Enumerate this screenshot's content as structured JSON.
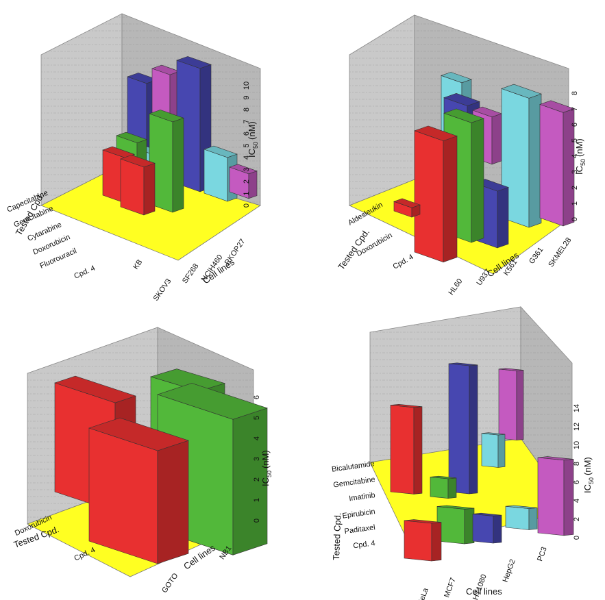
{
  "chart_data": [
    {
      "type": "bar3d",
      "x_label": "Cell lines",
      "y_label": "Tested Cpd.",
      "z_label": "IC50 (nM)",
      "z_ticks": [
        "0",
        "1",
        "2",
        "3",
        "4",
        "5",
        "6",
        "7",
        "8",
        "9",
        "10"
      ],
      "zlim": [
        0,
        10
      ],
      "categories": [
        "KB",
        "SKOV3",
        "SF268",
        "NCIH460",
        "RKOP27"
      ],
      "series": [
        {
          "name": "Cpd. 4",
          "color": "#e83030",
          "values": [
            3.5,
            null,
            null,
            null,
            null
          ]
        },
        {
          "name": "Fluorouracil",
          "color": "#e83030",
          "values": [
            3.3,
            null,
            null,
            null,
            null
          ]
        },
        {
          "name": "Doxorubicin",
          "color": "#52b83a",
          "values": [
            3.2,
            6.0,
            null,
            null,
            null
          ]
        },
        {
          "name": "Cytarabine",
          "color": "#7ad7e0",
          "values": [
            null,
            null,
            3.0,
            3.2,
            null
          ]
        },
        {
          "name": "Gemcitabine",
          "color": "#4747b0",
          "values": [
            5.8,
            8.0,
            null,
            null,
            null
          ]
        },
        {
          "name": "Capecitabine",
          "color": "#c45ac0",
          "values": [
            6.0,
            null,
            null,
            null,
            2.7
          ]
        }
      ]
    },
    {
      "type": "bar3d",
      "x_label": "Cell lines",
      "y_label": "Tested Cpd.",
      "z_label": "IC50 (nM)",
      "z_ticks": [
        "0",
        "1",
        "2",
        "3",
        "4",
        "5",
        "6",
        "7",
        "8"
      ],
      "zlim": [
        0,
        8
      ],
      "categories": [
        "HL60",
        "U937",
        "K561",
        "G361",
        "SKMEL28"
      ],
      "series": [
        {
          "name": "Cpd. 4",
          "color": "#e83030",
          "values": [
            6.7,
            null,
            null,
            null,
            null
          ]
        },
        {
          "name": "Doxorubicin",
          "color": "#52b83a",
          "values": [
            null,
            6.8,
            null,
            null,
            null
          ]
        },
        {
          "name": "Aldesleukin",
          "color": "#e83030",
          "values": [
            0.4,
            null,
            null,
            null,
            null
          ]
        },
        {
          "name": "Doxorubicin",
          "color": "#4747b0",
          "values": [
            null,
            2.7,
            null,
            null,
            null
          ]
        },
        {
          "name": "Aldesleukin",
          "color": "#7ad7e0",
          "values": [
            null,
            null,
            7.3,
            null,
            null
          ]
        },
        {
          "name": "Aldesleukin",
          "color": "#c45ac0",
          "values": [
            null,
            null,
            null,
            6.3,
            null
          ]
        }
      ]
    },
    {
      "type": "bar3d",
      "x_label": "Cell lines",
      "y_label": "Tested Cpd.",
      "z_label": "IC50 (nM)",
      "z_ticks": [
        "0",
        "1",
        "2",
        "3",
        "4",
        "5",
        "6"
      ],
      "zlim": [
        0,
        6
      ],
      "categories": [
        "GOTO",
        "NB1"
      ],
      "series": [
        {
          "name": "Cpd. 4",
          "values": [
            5.3,
            5.7
          ]
        },
        {
          "name": "Doxorubicin",
          "values": [
            5.1,
            5.8
          ]
        }
      ]
    },
    {
      "type": "bar3d",
      "x_label": "Cell lines",
      "y_label": "Tested Cpd.",
      "z_label": "IC50 (nM)",
      "z_ticks": [
        "0",
        "2",
        "4",
        "6",
        "8",
        "10",
        "12",
        "14"
      ],
      "zlim": [
        0,
        14
      ],
      "categories": [
        "HeLa",
        "MCF7",
        "HT1080",
        "HepG2",
        "PC3"
      ],
      "series": [
        {
          "name": "Cpd. 4",
          "values": [
            12.0,
            null,
            null,
            null,
            null
          ]
        },
        {
          "name": "Paditaxel",
          "values": [
            4.0,
            4.0,
            null,
            null,
            null
          ]
        },
        {
          "name": "Epirubicin",
          "values": [
            null,
            null,
            2.0,
            null,
            null
          ]
        },
        {
          "name": "Imatinib",
          "values": [
            null,
            null,
            null,
            2.2,
            null
          ]
        },
        {
          "name": "Gemcitabine",
          "values": [
            null,
            null,
            12.0,
            null,
            null
          ]
        },
        {
          "name": "Bicalutamide",
          "values": [
            null,
            null,
            null,
            5.0,
            10.0
          ]
        }
      ]
    }
  ],
  "panels": [
    {
      "z_label_text": "IC",
      "z_label_sub": "50",
      "z_label_unit": "(nM)",
      "y_label": "Tested Cpd.",
      "x_label": "Cell lines",
      "y_ticks": [
        "Capecitabine",
        "Gemcitabine",
        "Cytarabine",
        "Doxorubicin",
        "Fluorouracil",
        "Cpd. 4"
      ],
      "x_ticks": [
        "KB",
        "SKOV3",
        "SF268",
        "NCIH460",
        "RKOP27"
      ],
      "z_ticks": [
        "0",
        "1",
        "2",
        "3",
        "4",
        "5",
        "6",
        "7",
        "8",
        "9",
        "10"
      ]
    },
    {
      "z_label_text": "IC",
      "z_label_sub": "50",
      "z_label_unit": "(nM)",
      "y_label": "Tested Cpd.",
      "x_label": "Cell lines",
      "y_ticks": [
        "Aldesleukin",
        "Doxorubicin",
        "Cpd. 4"
      ],
      "x_ticks": [
        "HL60",
        "U937",
        "K561",
        "G361",
        "SKMEL28"
      ],
      "z_ticks": [
        "0",
        "1",
        "2",
        "3",
        "4",
        "5",
        "6",
        "7",
        "8"
      ]
    },
    {
      "z_label_text": "IC",
      "z_label_sub": "50",
      "z_label_unit": "(nM)",
      "y_label": "Tested Cpd.",
      "x_label": "Cell lines",
      "y_ticks": [
        "Doxorubicin",
        "Cpd. 4"
      ],
      "x_ticks": [
        "GOTO",
        "NB1"
      ],
      "z_ticks": [
        "0",
        "1",
        "2",
        "3",
        "4",
        "5",
        "6"
      ]
    },
    {
      "z_label_text": "IC",
      "z_label_sub": "50",
      "z_label_unit": "(nM)",
      "y_label": "Tested Cpd.",
      "x_label": "Cell lines",
      "y_ticks": [
        "Bicalutamide",
        "Gemcitabine",
        "Imatinib",
        "Epirubicin",
        "Paditaxel",
        "Cpd. 4"
      ],
      "x_ticks": [
        "HeLa",
        "MCF7",
        "HT1080",
        "HepG2",
        "PC3"
      ],
      "z_ticks": [
        "0",
        "2",
        "4",
        "6",
        "8",
        "10",
        "12",
        "14"
      ]
    }
  ],
  "colors": {
    "wall": "#c9c9c9",
    "wall_dark": "#b4b4b4",
    "floor": "#ffff22",
    "red": "#e83030",
    "green": "#52b83a",
    "blue": "#4747b0",
    "cyan": "#7ad7e0",
    "magenta": "#c45ac0"
  }
}
